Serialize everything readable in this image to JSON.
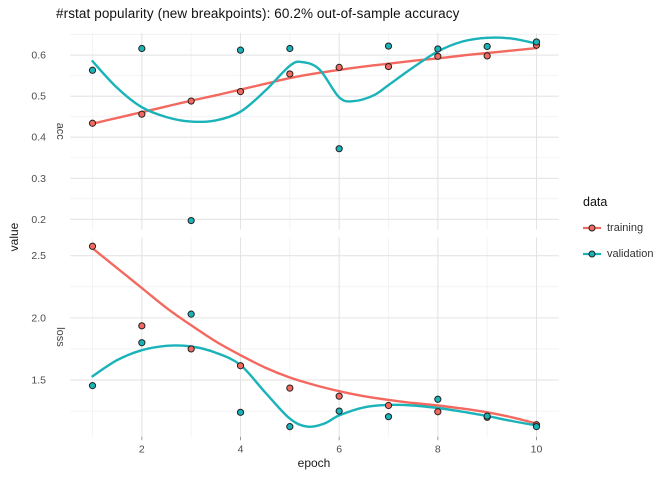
{
  "chart_data": {
    "type": "line",
    "title": "#rstat popularity (new breakpoints): 60.2% out-of-sample accuracy",
    "xlabel": "epoch",
    "ylabel": "value",
    "legend_title": "data",
    "legend_position": "right",
    "grid": true,
    "x": [
      1,
      2,
      3,
      4,
      5,
      6,
      7,
      8,
      9,
      10
    ],
    "x_ticks": [
      2,
      4,
      6,
      8,
      10
    ],
    "x_minor": [
      1,
      3,
      5,
      7,
      9
    ],
    "xlim": [
      0.55,
      10.45
    ],
    "facets": [
      {
        "name": "acc",
        "ylim": [
          0.175,
          0.654
        ],
        "y_ticks": [
          0.2,
          0.3,
          0.4,
          0.5,
          0.6
        ],
        "y_minor": [
          0.25,
          0.35,
          0.45,
          0.55,
          0.65
        ],
        "series": [
          {
            "name": "training",
            "color": "#f3695f",
            "values": [
              0.434,
              0.456,
              0.488,
              0.511,
              0.554,
              0.57,
              0.572,
              0.597,
              0.598,
              0.624
            ],
            "smooth": [
              [
                1,
                0.433
              ],
              [
                1.5,
                0.447
              ],
              [
                2,
                0.461
              ],
              [
                2.5,
                0.475
              ],
              [
                3,
                0.489
              ],
              [
                3.5,
                0.502
              ],
              [
                4,
                0.516
              ],
              [
                4.5,
                0.53
              ],
              [
                5,
                0.544
              ],
              [
                5.5,
                0.555
              ],
              [
                6,
                0.564
              ],
              [
                6.5,
                0.572
              ],
              [
                7,
                0.579
              ],
              [
                7.5,
                0.586
              ],
              [
                8,
                0.592
              ],
              [
                8.5,
                0.599
              ],
              [
                9,
                0.605
              ],
              [
                9.5,
                0.611
              ],
              [
                10,
                0.617
              ]
            ]
          },
          {
            "name": "validation",
            "color": "#19b3b9",
            "values": [
              0.563,
              0.616,
              0.197,
              0.612,
              0.616,
              0.372,
              0.622,
              0.615,
              0.621,
              0.632
            ],
            "smooth": [
              [
                1,
                0.585
              ],
              [
                1.5,
                0.52
              ],
              [
                2,
                0.473
              ],
              [
                2.5,
                0.449
              ],
              [
                3,
                0.438
              ],
              [
                3.5,
                0.441
              ],
              [
                4,
                0.462
              ],
              [
                4.5,
                0.513
              ],
              [
                5,
                0.574
              ],
              [
                5.25,
                0.583
              ],
              [
                5.6,
                0.565
              ],
              [
                6,
                0.497
              ],
              [
                6.3,
                0.488
              ],
              [
                6.7,
                0.502
              ],
              [
                7,
                0.527
              ],
              [
                7.5,
                0.57
              ],
              [
                8,
                0.609
              ],
              [
                8.5,
                0.633
              ],
              [
                9,
                0.642
              ],
              [
                9.5,
                0.64
              ],
              [
                10,
                0.628
              ]
            ]
          }
        ]
      },
      {
        "name": "loss",
        "ylim": [
          1.044,
          2.649
        ],
        "y_ticks": [
          1.5,
          2.0,
          2.5
        ],
        "y_minor": [
          1.25,
          1.75,
          2.25
        ],
        "series": [
          {
            "name": "training",
            "color": "#f3695f",
            "values": [
              2.576,
              1.936,
              1.75,
              1.615,
              1.435,
              1.37,
              1.295,
              1.245,
              1.2,
              1.14
            ],
            "smooth": [
              [
                1,
                2.56
              ],
              [
                1.5,
                2.4
              ],
              [
                2,
                2.24
              ],
              [
                2.5,
                2.08
              ],
              [
                3,
                1.94
              ],
              [
                3.5,
                1.81
              ],
              [
                4,
                1.7
              ],
              [
                4.5,
                1.6
              ],
              [
                5,
                1.52
              ],
              [
                5.5,
                1.46
              ],
              [
                6,
                1.41
              ],
              [
                6.5,
                1.37
              ],
              [
                7,
                1.34
              ],
              [
                7.5,
                1.315
              ],
              [
                8,
                1.295
              ],
              [
                8.5,
                1.27
              ],
              [
                9,
                1.24
              ],
              [
                9.5,
                1.2
              ],
              [
                10,
                1.15
              ]
            ]
          },
          {
            "name": "validation",
            "color": "#19b3b9",
            "values": [
              1.455,
              1.8,
              2.03,
              1.24,
              1.125,
              1.25,
              1.205,
              1.345,
              1.21,
              1.125
            ],
            "smooth": [
              [
                1,
                1.53
              ],
              [
                1.5,
                1.66
              ],
              [
                2,
                1.74
              ],
              [
                2.5,
                1.775
              ],
              [
                3,
                1.77
              ],
              [
                3.5,
                1.72
              ],
              [
                4,
                1.62
              ],
              [
                4.5,
                1.4
              ],
              [
                5,
                1.19
              ],
              [
                5.35,
                1.125
              ],
              [
                5.7,
                1.15
              ],
              [
                6,
                1.215
              ],
              [
                6.5,
                1.28
              ],
              [
                7,
                1.3
              ],
              [
                7.5,
                1.295
              ],
              [
                8,
                1.275
              ],
              [
                8.5,
                1.245
              ],
              [
                9,
                1.21
              ],
              [
                9.5,
                1.17
              ],
              [
                10,
                1.135
              ]
            ]
          }
        ]
      }
    ]
  },
  "colors": {
    "training": "#f3695f",
    "validation": "#19b3b9",
    "point_stroke": "#222222",
    "grid_major": "#e4e4e4",
    "grid_minor": "#f1f1f1",
    "tick_text": "#4d4d4d"
  }
}
